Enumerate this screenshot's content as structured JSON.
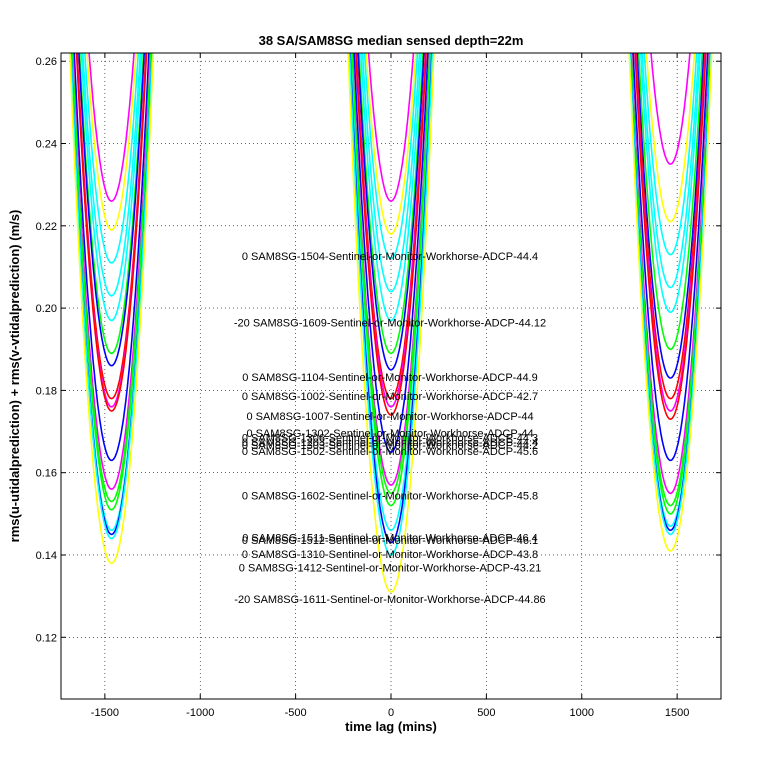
{
  "chart_data": {
    "type": "line",
    "title": "38 SA/SAM8SG median sensed depth=22m",
    "xlabel": "time lag (mins)",
    "ylabel": "rms(u-utidalprediction) + rms(v-vtidalprediction) (m/s)",
    "xlim": [
      -1730,
      1730
    ],
    "ylim": [
      0.105,
      0.262
    ],
    "xticks": [
      -1500,
      -1000,
      -500,
      0,
      500,
      1000,
      1500
    ],
    "yticks": [
      0.12,
      0.14,
      0.16,
      0.18,
      0.2,
      0.22,
      0.24,
      0.26
    ],
    "grid": true,
    "legend": "none",
    "series": [
      {
        "color": "#ff00ff",
        "minima": [
          0.226,
          0.226,
          0.235
        ]
      },
      {
        "color": "#ffff00",
        "minima": [
          0.219,
          0.218,
          0.221
        ]
      },
      {
        "color": "#00ffff",
        "minima": [
          0.211,
          0.212,
          0.213
        ]
      },
      {
        "color": "#00ffff",
        "minima": [
          0.203,
          0.204,
          0.205
        ]
      },
      {
        "color": "#00ffff",
        "minima": [
          0.197,
          0.197,
          0.199
        ]
      },
      {
        "color": "#00ff00",
        "minima": [
          0.189,
          0.189,
          0.19
        ]
      },
      {
        "color": "#0000ff",
        "minima": [
          0.186,
          0.185,
          0.183
        ]
      },
      {
        "color": "#ff0000",
        "minima": [
          0.178,
          0.178,
          0.178
        ]
      },
      {
        "color": "#ff00ff",
        "minima": [
          0.176,
          0.176,
          0.175
        ]
      },
      {
        "color": "#ff0000",
        "minima": [
          0.175,
          0.174,
          0.173
        ]
      },
      {
        "color": "#0000ff",
        "minima": [
          0.163,
          0.165,
          0.163
        ]
      },
      {
        "color": "#ff00ff",
        "minima": [
          0.156,
          0.157,
          0.155
        ]
      },
      {
        "color": "#00ff00",
        "minima": [
          0.153,
          0.155,
          0.152
        ]
      },
      {
        "color": "#00ff00",
        "minima": [
          0.151,
          0.152,
          0.15
        ]
      },
      {
        "color": "#00ffff",
        "minima": [
          0.146,
          0.146,
          0.147
        ]
      },
      {
        "color": "#0000ff",
        "minima": [
          0.145,
          0.143,
          0.146
        ]
      },
      {
        "color": "#00ffff",
        "minima": [
          0.144,
          0.14,
          0.145
        ]
      },
      {
        "color": "#ffff00",
        "minima": [
          0.138,
          0.131,
          0.141
        ]
      }
    ],
    "annotations": [
      {
        "text": "0 SAM8SG-1504-Sentinel-or-Monitor-Workhorse-ADCP-44.4",
        "y": 0.2127
      },
      {
        "text": "-20 SAM8SG-1609-Sentinel-or-Monitor-Workhorse-ADCP-44.12",
        "y": 0.1965
      },
      {
        "text": "0 SAM8SG-1104-Sentinel-or-Monitor-Workhorse-ADCP-44.9",
        "y": 0.1833
      },
      {
        "text": "0 SAM8SG-1002-Sentinel-or-Monitor-Workhorse-ADCP-42.7",
        "y": 0.1787
      },
      {
        "text": "0 SAM8SG-1007-Sentinel-or-Monitor-Workhorse-ADCP-44",
        "y": 0.1738
      },
      {
        "text": "0 SAM8SG-1302-Sentinel-or-Monitor-Workhorse-ADCP-44",
        "y": 0.1697
      },
      {
        "text": "0 SAM8SG-1306-Sentinel-or-Monitor-Workhorse-ADCP-44.3",
        "y": 0.1686
      },
      {
        "text": "0 SAM8SG-1203-Sentinel-or-Monitor-Workhorse-ADCP-44.4",
        "y": 0.1675
      },
      {
        "text": "0 SAM8SG-1303-Sentinel-or-Monitor-Workhorse-ADCP-44.2",
        "y": 0.1667
      },
      {
        "text": "0 SAM8SG-1502-Sentinel-or-Monitor-Workhorse-ADCP-45.6",
        "y": 0.1653
      },
      {
        "text": "0 SAM8SG-1602-Sentinel-or-Monitor-Workhorse-ADCP-45.8",
        "y": 0.1545
      },
      {
        "text": "0 SAM8SG-1511-Sentinel-or-Monitor-Workhorse-ADCP-46.4",
        "y": 0.1443
      },
      {
        "text": "0 SAM8SG-1512-Sentinel-or-Monitor-Workhorse-ADCP-46.1",
        "y": 0.1436
      },
      {
        "text": "0 SAM8SG-1310-Sentinel-or-Monitor-Workhorse-ADCP-43.8",
        "y": 0.1403
      },
      {
        "text": "0 SAM8SG-1412-Sentinel-or-Monitor-Workhorse-ADCP-43.21",
        "y": 0.1369
      },
      {
        "text": "-20 SAM8SG-1611-Sentinel-or-Monitor-Workhorse-ADCP-44.86",
        "y": 0.1293
      }
    ]
  }
}
